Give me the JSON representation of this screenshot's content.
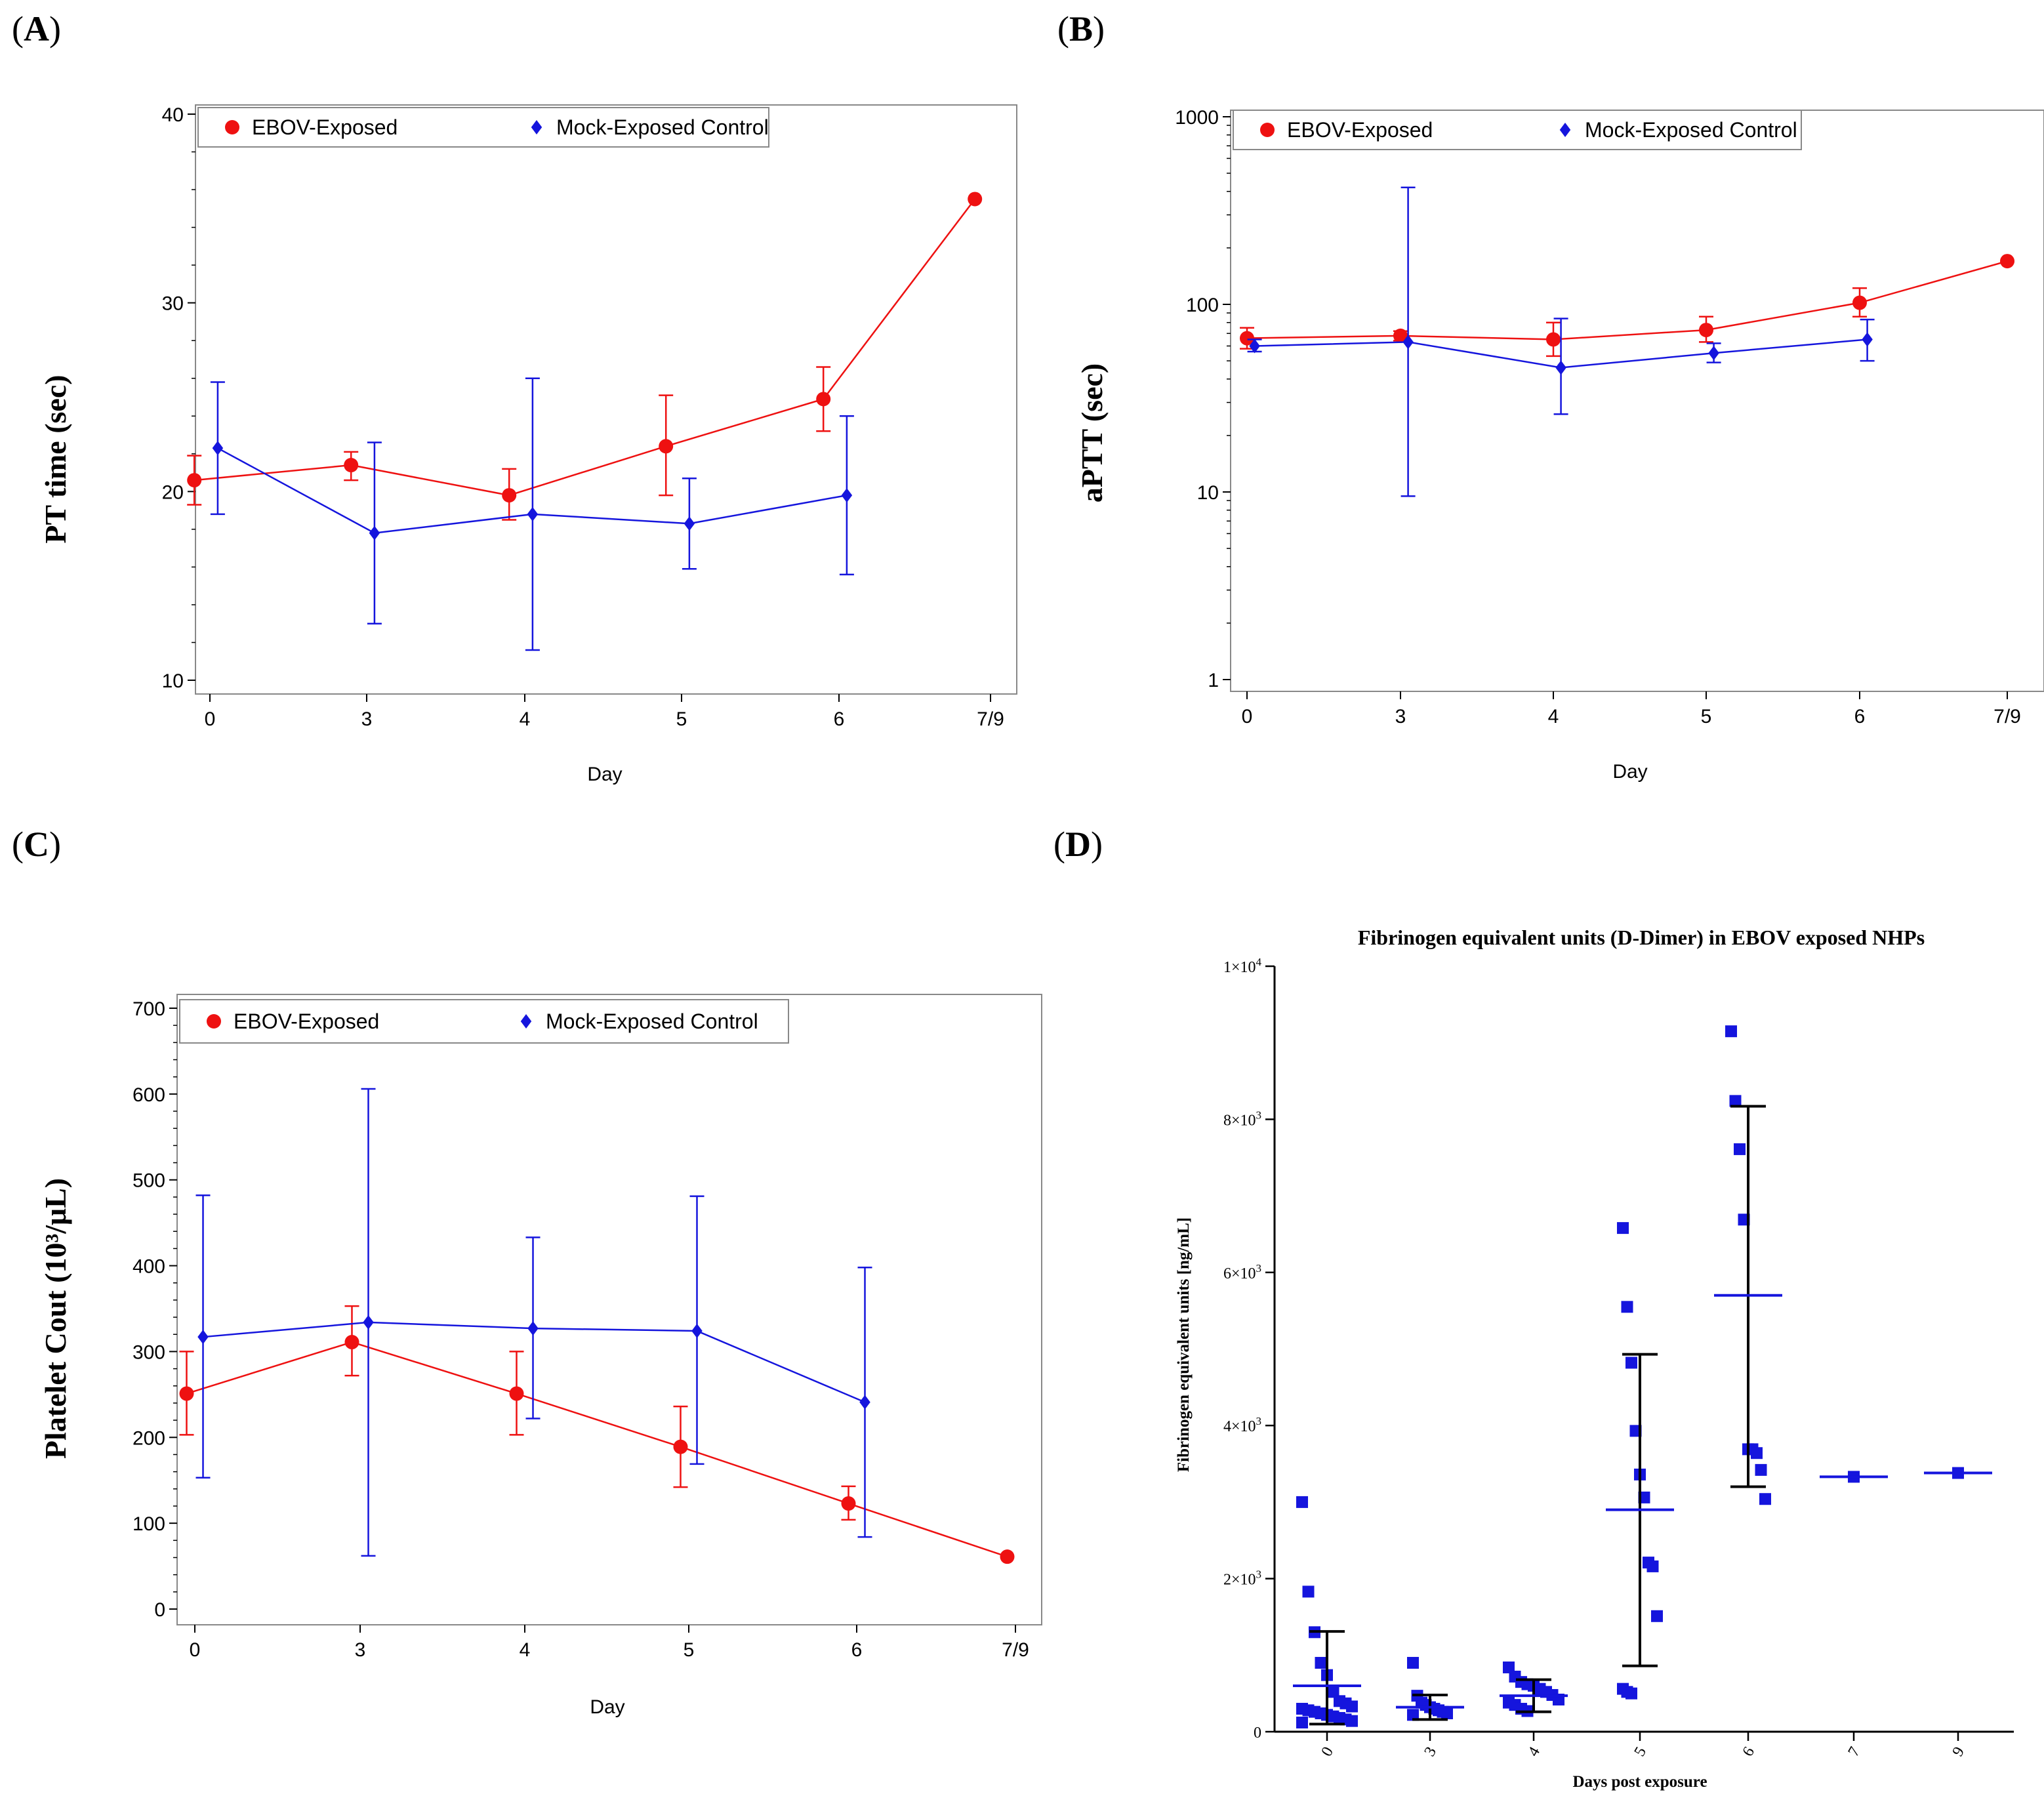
{
  "colors": {
    "ebov": "#ee1111",
    "mock": "#1515dd",
    "frame": "#888888",
    "black": "#000000",
    "dimer_points": "#1515dd"
  },
  "chart_data": [
    {
      "id": "A",
      "panel_label": "A",
      "type": "line",
      "title": "",
      "xlabel": "Day",
      "ylabel": "PT time (sec)",
      "categories": [
        "0",
        "3",
        "4",
        "5",
        "6",
        "7/9"
      ],
      "ylim": [
        10,
        40
      ],
      "yticks": [
        10,
        20,
        30,
        40
      ],
      "yscale": "linear",
      "minor_per_major": 4,
      "legend": {
        "position": "top",
        "items": [
          "EBOV-Exposed",
          "Mock-Exposed Control"
        ]
      },
      "series": [
        {
          "name": "EBOV-Exposed",
          "color_key": "ebov",
          "marker": "circle",
          "offset": -0.1,
          "values": [
            20.6,
            21.4,
            19.8,
            22.4,
            24.9,
            35.5
          ],
          "err_low": [
            19.3,
            20.6,
            18.5,
            19.8,
            23.2,
            null
          ],
          "err_high": [
            21.9,
            22.1,
            21.2,
            25.1,
            26.6,
            null
          ]
        },
        {
          "name": "Mock-Exposed Control",
          "color_key": "mock",
          "marker": "diamond",
          "offset": 0.05,
          "values": [
            22.3,
            17.8,
            18.8,
            18.3,
            19.8,
            null
          ],
          "err_low": [
            18.8,
            13.0,
            11.6,
            15.9,
            15.6,
            null
          ],
          "err_high": [
            25.8,
            22.6,
            26.0,
            20.7,
            24.0,
            null
          ]
        }
      ]
    },
    {
      "id": "B",
      "panel_label": "B",
      "type": "line",
      "title": "",
      "xlabel": "Day",
      "ylabel": "aPTT (sec)",
      "categories": [
        "0",
        "3",
        "4",
        "5",
        "6",
        "7/9"
      ],
      "ylim": [
        1,
        1000
      ],
      "yticks": [
        1,
        10,
        100,
        1000
      ],
      "yscale": "log",
      "legend": {
        "position": "top",
        "items": [
          "EBOV-Exposed",
          "Mock-Exposed Control"
        ]
      },
      "series": [
        {
          "name": "EBOV-Exposed",
          "color_key": "ebov",
          "marker": "circle",
          "offset": 0.0,
          "values": [
            66,
            68,
            65,
            73,
            102,
            170
          ],
          "err_low": [
            58,
            64,
            53,
            63,
            86,
            null
          ],
          "err_high": [
            75,
            72,
            80,
            86,
            122,
            null
          ]
        },
        {
          "name": "Mock-Exposed Control",
          "color_key": "mock",
          "marker": "diamond",
          "offset": 0.05,
          "values": [
            60,
            63,
            46,
            55,
            65,
            null
          ],
          "err_low": [
            56,
            9.5,
            26,
            49,
            50,
            null
          ],
          "err_high": [
            65,
            420,
            84,
            62,
            83,
            null
          ]
        }
      ]
    },
    {
      "id": "C",
      "panel_label": "C",
      "type": "line",
      "title": "",
      "xlabel": "Day",
      "ylabel": "Platelet Cout (10³/μL)",
      "categories": [
        "0",
        "3",
        "4",
        "5",
        "6",
        "7/9"
      ],
      "ylim": [
        0,
        700
      ],
      "yticks": [
        0,
        100,
        200,
        300,
        400,
        500,
        600,
        700
      ],
      "yscale": "linear",
      "minor_per_major": 4,
      "legend": {
        "position": "top",
        "items": [
          "EBOV-Exposed",
          "Mock-Exposed Control"
        ]
      },
      "series": [
        {
          "name": "EBOV-Exposed",
          "color_key": "ebov",
          "marker": "circle",
          "offset": -0.05,
          "values": [
            251,
            311,
            251,
            189,
            123,
            61
          ],
          "err_low": [
            203,
            272,
            203,
            142,
            104,
            null
          ],
          "err_high": [
            300,
            353,
            300,
            236,
            143,
            null
          ]
        },
        {
          "name": "Mock-Exposed Control",
          "color_key": "mock",
          "marker": "diamond",
          "offset": 0.05,
          "values": [
            317,
            334,
            327,
            324,
            241,
            null
          ],
          "err_low": [
            153,
            62,
            222,
            169,
            84,
            null
          ],
          "err_high": [
            482,
            606,
            433,
            481,
            398,
            null
          ]
        }
      ]
    },
    {
      "id": "D",
      "panel_label": "D",
      "type": "scatter",
      "title": "Fibrinogen equivalent units (D-Dimer) in EBOV exposed NHPs",
      "xlabel": "Days post exposure",
      "ylabel": "Fibrinogen equivalent units [ng/mL]",
      "categories": [
        "0",
        "3",
        "4",
        "5",
        "6",
        "7",
        "9"
      ],
      "ylim": [
        0,
        10000
      ],
      "yticks": [
        0,
        2000,
        4000,
        6000,
        8000,
        10000
      ],
      "ytick_labels": [
        {
          "base": "0",
          "exp": ""
        },
        {
          "base": "2×10",
          "exp": "3"
        },
        {
          "base": "4×10",
          "exp": "3"
        },
        {
          "base": "6×10",
          "exp": "3"
        },
        {
          "base": "8×10",
          "exp": "3"
        },
        {
          "base": "1×10",
          "exp": "4"
        }
      ],
      "groups": [
        {
          "day": "0",
          "mean": 600,
          "sd_low": 100,
          "sd_high": 1310,
          "points": [
            3000,
            1830,
            1300,
            900,
            740,
            520,
            400,
            370,
            330,
            300,
            280,
            260,
            240,
            220,
            200,
            180,
            160,
            140,
            120
          ]
        },
        {
          "day": "3",
          "mean": 320,
          "sd_low": 160,
          "sd_high": 480,
          "points": [
            900,
            470,
            380,
            350,
            320,
            300,
            280,
            260,
            240,
            220
          ]
        },
        {
          "day": "4",
          "mean": 470,
          "sd_low": 260,
          "sd_high": 680,
          "points": [
            840,
            720,
            650,
            620,
            600,
            560,
            520,
            480,
            420,
            380,
            350,
            300,
            270
          ]
        },
        {
          "day": "5",
          "mean": 2900,
          "sd_low": 860,
          "sd_high": 4930,
          "points": [
            6580,
            5550,
            4820,
            3930,
            3360,
            3060,
            2210,
            2160,
            1510,
            560,
            520,
            500
          ]
        },
        {
          "day": "6",
          "mean": 5700,
          "sd_low": 3200,
          "sd_high": 8170,
          "points": [
            9150,
            8240,
            7610,
            6690,
            3690,
            3690,
            3640,
            3420,
            3040
          ]
        },
        {
          "day": "7",
          "mean": 3330,
          "sd_low": null,
          "sd_high": null,
          "points": [
            3330
          ]
        },
        {
          "day": "9",
          "mean": 3380,
          "sd_low": null,
          "sd_high": null,
          "points": [
            3380
          ]
        }
      ]
    }
  ]
}
